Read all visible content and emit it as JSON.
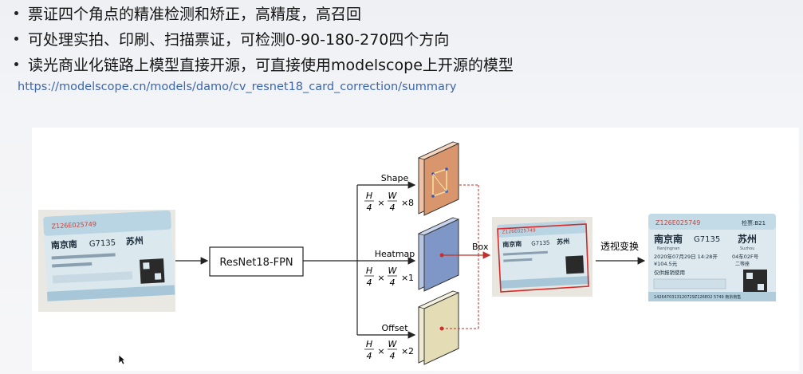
{
  "bullets": [
    "票证四个角点的精准检测和矫正，高精度，高召回",
    "可处理实拍、印刷、扫描票证，可检测0-90-180-270四个方向",
    "读光商业化链路上模型直接开源，可直接使用modelscope上开源的模型"
  ],
  "link": "https://modelscope.cn/models/damo/cv_resnet18_card_correction/summary",
  "diagram": {
    "backbone_label": "ResNet18-FPN",
    "heads": [
      {
        "label": "Shape",
        "channels": "8",
        "color": "#d9956b"
      },
      {
        "label": "Heatmap",
        "channels": "1",
        "color": "#7f97c6"
      },
      {
        "label": "Offset",
        "channels": "2",
        "color": "#e3dcb4"
      }
    ],
    "frac_top": "H",
    "frac_top2": "W",
    "frac_bottom": "4",
    "box_label": "Box",
    "transform_label": "透视变换",
    "ticket": {
      "serial": "Z126E025749",
      "check": "检票:B21",
      "from_station": "南京南",
      "train": "G7135",
      "to_station": "苏州",
      "from_pinyin": "Nanjingnan",
      "to_pinyin": "Suzhou",
      "date": "2020年07月29日 14:28开",
      "seat": "04车02F号",
      "price": "¥104.5元",
      "class": "二等座",
      "note": "仅供报销使用",
      "footer": "1426470313120729Z126E02 5749 南京南售"
    }
  }
}
